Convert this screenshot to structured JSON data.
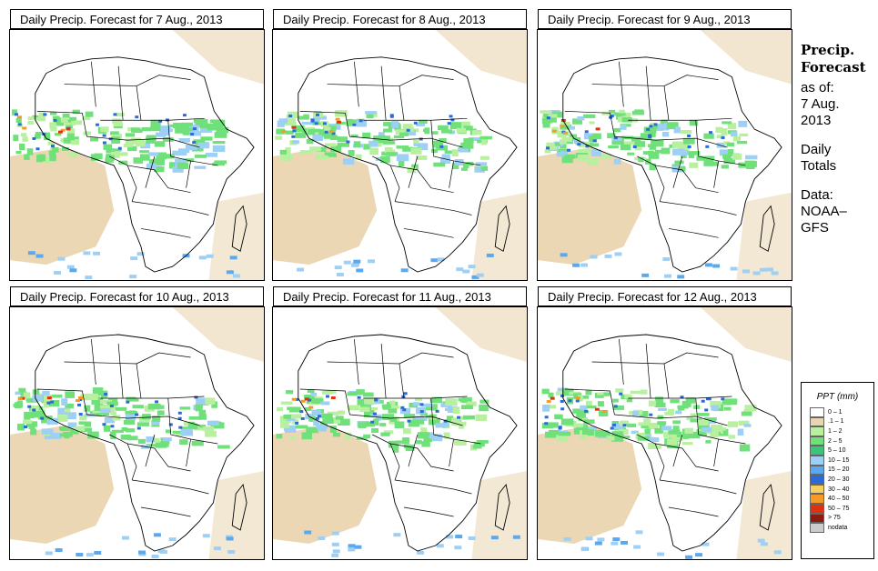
{
  "panels": [
    {
      "title": "Daily Precip. Forecast for  7 Aug., 2013"
    },
    {
      "title": "Daily Precip. Forecast for  8 Aug., 2013"
    },
    {
      "title": "Daily Precip. Forecast for  9 Aug., 2013"
    },
    {
      "title": "Daily Precip. Forecast for  10 Aug., 2013"
    },
    {
      "title": "Daily Precip. Forecast for  11 Aug., 2013"
    },
    {
      "title": "Daily Precip. Forecast for  12 Aug., 2013"
    }
  ],
  "side": {
    "heading_line1": "Precip.",
    "heading_line2": "Forecast",
    "asof_line1": "as of:",
    "asof_line2": "7 Aug.",
    "asof_line3": "2013",
    "daily_line1": "Daily",
    "daily_line2": "Totals",
    "data_line1": "Data:",
    "data_line2": "NOAA–",
    "data_line3": "GFS"
  },
  "legend": {
    "title": "PPT (mm)",
    "items": [
      {
        "label": "0 – 1",
        "color": "#ffffff"
      },
      {
        "label": ".1 – 1",
        "color": "#ead5b0"
      },
      {
        "label": "1 – 2",
        "color": "#b8f0a0"
      },
      {
        "label": "2 – 5",
        "color": "#6fe07a"
      },
      {
        "label": "5 – 10",
        "color": "#3bc47a"
      },
      {
        "label": "10 – 15",
        "color": "#9ecff5"
      },
      {
        "label": "15 – 20",
        "color": "#5aa8ee"
      },
      {
        "label": "20 – 30",
        "color": "#2b6ad8"
      },
      {
        "label": "30 – 40",
        "color": "#f5d060"
      },
      {
        "label": "40 – 50",
        "color": "#f59a25"
      },
      {
        "label": "50 – 75",
        "color": "#e03010"
      },
      {
        "label": "> 75",
        "color": "#8c1a10"
      },
      {
        "label": "nodata",
        "color": "#cccccc"
      }
    ]
  }
}
